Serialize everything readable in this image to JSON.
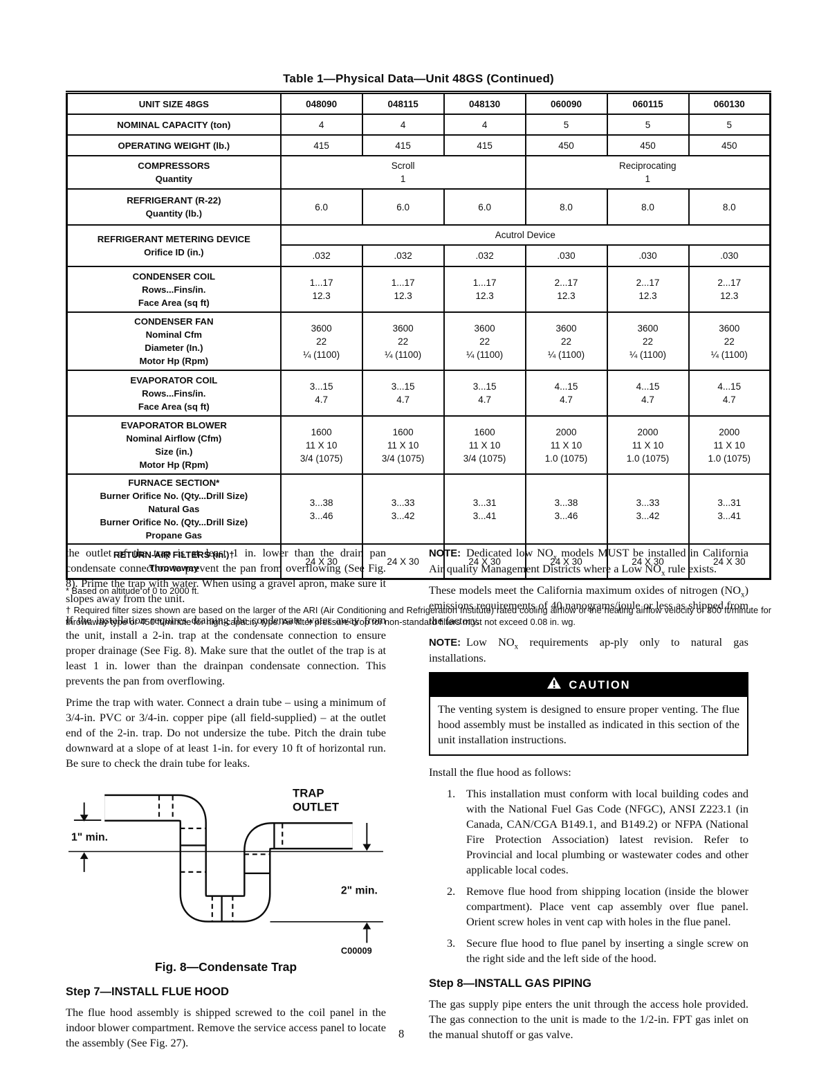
{
  "page": {
    "number": "8"
  },
  "table": {
    "title": "Table 1—Physical Data—Unit 48GS (Continued)",
    "header_label": "UNIT SIZE 48GS",
    "header_cols": [
      "048090",
      "048115",
      "048130",
      "060090",
      "060115",
      "060130"
    ],
    "rows": {
      "capacity": {
        "label": "NOMINAL CAPACITY (ton)",
        "values": [
          "4",
          "4",
          "4",
          "5",
          "5",
          "5"
        ]
      },
      "weight": {
        "label": "OPERATING WEIGHT (lb.)",
        "values": [
          "415",
          "415",
          "415",
          "450",
          "450",
          "450"
        ]
      },
      "compressors": {
        "label": [
          "COMPRESSORS",
          "Quantity"
        ],
        "groups": [
          [
            "Scroll",
            "1"
          ],
          [
            "Reciprocating",
            "1"
          ]
        ]
      },
      "refrigerant": {
        "label": [
          "REFRIGERANT (R-22)",
          "Quantity (lb.)"
        ],
        "values": [
          "6.0",
          "6.0",
          "6.0",
          "8.0",
          "8.0",
          "8.0"
        ]
      },
      "metering": {
        "label": [
          "REFRIGERANT METERING DEVICE",
          "Orifice ID (in.)"
        ],
        "device": "Acutrol Device",
        "values": [
          ".032",
          ".032",
          ".032",
          ".030",
          ".030",
          ".030"
        ]
      },
      "condenser_coil": {
        "label": [
          "CONDENSER COIL",
          "Rows...Fins/in.",
          "Face Area (sq ft)"
        ],
        "values": [
          [
            "1...17",
            "12.3"
          ],
          [
            "1...17",
            "12.3"
          ],
          [
            "1...17",
            "12.3"
          ],
          [
            "2...17",
            "12.3"
          ],
          [
            "2...17",
            "12.3"
          ],
          [
            "2...17",
            "12.3"
          ]
        ]
      },
      "condenser_fan": {
        "label": [
          "CONDENSER FAN",
          "Nominal Cfm",
          "Diameter (In.)",
          "Motor Hp (Rpm)"
        ],
        "values": [
          [
            "3600",
            "22",
            "¼ (1100)"
          ],
          [
            "3600",
            "22",
            "¼ (1100)"
          ],
          [
            "3600",
            "22",
            "¼ (1100)"
          ],
          [
            "3600",
            "22",
            "¼ (1100)"
          ],
          [
            "3600",
            "22",
            "¼ (1100)"
          ],
          [
            "3600",
            "22",
            "¼ (1100)"
          ]
        ]
      },
      "evaporator_coil": {
        "label": [
          "EVAPORATOR COIL",
          "Rows...Fins/in.",
          "Face Area (sq ft)"
        ],
        "values": [
          [
            "3...15",
            "4.7"
          ],
          [
            "3...15",
            "4.7"
          ],
          [
            "3...15",
            "4.7"
          ],
          [
            "4...15",
            "4.7"
          ],
          [
            "4...15",
            "4.7"
          ],
          [
            "4...15",
            "4.7"
          ]
        ]
      },
      "evaporator_blower": {
        "label": [
          "EVAPORATOR BLOWER",
          "Nominal Airflow (Cfm)",
          "Size (in.)",
          "Motor Hp (Rpm)"
        ],
        "values": [
          [
            "1600",
            "11 X 10",
            "3/4 (1075)"
          ],
          [
            "1600",
            "11 X 10",
            "3/4 (1075)"
          ],
          [
            "1600",
            "11 X 10",
            "3/4 (1075)"
          ],
          [
            "2000",
            "11 X 10",
            "1.0 (1075)"
          ],
          [
            "2000",
            "11 X 10",
            "1.0 (1075)"
          ],
          [
            "2000",
            "11 X 10",
            "1.0 (1075)"
          ]
        ]
      },
      "furnace": {
        "label": [
          "FURNACE SECTION*",
          "Burner Orifice No. (Qty...Drill Size)",
          "Natural Gas",
          "Burner Orifice No. (Qty...Drill Size)",
          "Propane Gas"
        ],
        "values": [
          [
            "3...38",
            "3...46"
          ],
          [
            "3...33",
            "3...42"
          ],
          [
            "3...31",
            "3...41"
          ],
          [
            "3...38",
            "3...46"
          ],
          [
            "3...33",
            "3...42"
          ],
          [
            "3...31",
            "3...41"
          ]
        ]
      },
      "filters": {
        "label": [
          "RETURN-AIR FILTERS (in.)†",
          "Throwaway"
        ],
        "values": [
          "24 X 30",
          "24 X 30",
          "24 X 30",
          "24 X 30",
          "24 X 30",
          "24 X 30"
        ]
      }
    },
    "footnote_star": "* Based on altitude of 0 to 2000 ft.",
    "footnote_dagger": "† Required filter sizes shown are based on the larger of the ARI (Air Conditioning and Refrigeration Institute) rated cooling airflow or the heating airflow velocity of 300 ft/minute for throwaway type or 450 ft/minute for high-capacity type. Air filter pressure drop for non-standard filters must not exceed 0.08 in. wg."
  },
  "left_column": {
    "para1": "the outlet of the trap is at least 1 in. lower than the drain pan condensate connection to prevent the pan from overflowing (See Fig. 8). Prime the trap with water. When using a gravel apron, make sure it slopes away from the unit.",
    "para2": "If the installation requires draining the condensate water away from the unit, install a 2-in. trap at the condensate connection to ensure proper drainage (See Fig. 8). Make sure that the outlet of the trap is at least 1 in. lower than the drainpan condensate connection. This prevents the pan from overflowing.",
    "para3": "Prime the trap with water. Connect a drain tube – using a minimum of 3/4-in. PVC or 3/4-in. copper pipe (all field-supplied) – at the outlet end of the 2-in. trap. Do not undersize the tube. Pitch the drain tube downward at a slope of at least 1-in. for every 10 ft of horizontal run. Be sure to check the drain tube for leaks.",
    "figure": {
      "trap_line1": "TRAP",
      "trap_line2": "OUTLET",
      "dim_top": "1\" min.",
      "dim_right": "2\" min.",
      "code": "C00009",
      "caption": "Fig. 8—Condensate Trap"
    },
    "step7": {
      "heading": "Step 7—INSTALL FLUE HOOD",
      "body": "The flue hood assembly is shipped screwed to the coil panel in the indoor blower compartment. Remove the service access panel to locate the assembly (See Fig. 27)."
    }
  },
  "right_column": {
    "note1_label": "NOTE:",
    "note1_text": "Dedicated low NO~x~ models MUST be installed in California Air quality Management Districts where a Low NO~x~ rule exists.",
    "para_nox": "These models meet the California maximum oxides of nitrogen (NO~x~) emissions requirements of 40 nanograms/joule or less as shipped from the factory.",
    "note2_label": "NOTE:",
    "note2_text": "Low NO~x~ requirements ap-ply only to natural gas installations.",
    "caution_title": "CAUTION",
    "caution_body": "The venting system is designed to ensure proper venting. The flue hood assembly must be installed as indicated in this section of the unit installation instructions.",
    "install_intro": "Install the flue hood as follows:",
    "list": [
      {
        "num": "1.",
        "text": "This installation must conform with local building codes and with the National Fuel Gas Code (NFGC), ANSI Z223.1 (in Canada, CAN/CGA B149.1, and B149.2) or NFPA (National Fire Protection Association) latest revision. Refer to Provincial and local plumbing or wastewater codes and other applicable local codes."
      },
      {
        "num": "2.",
        "text": "Remove flue hood from shipping location (inside the blower compartment). Place vent cap assembly over flue panel. Orient screw holes in vent cap with holes in the flue panel."
      },
      {
        "num": "3.",
        "text": "Secure flue hood to flue panel by inserting a single screw on the right side and the left side of the hood."
      }
    ],
    "step8": {
      "heading": "Step 8—INSTALL GAS PIPING",
      "body": "The gas supply pipe enters the unit through the access hole provided. The gas connection to the unit is made to the 1/2-in. FPT gas inlet on the manual shutoff or gas valve."
    }
  }
}
